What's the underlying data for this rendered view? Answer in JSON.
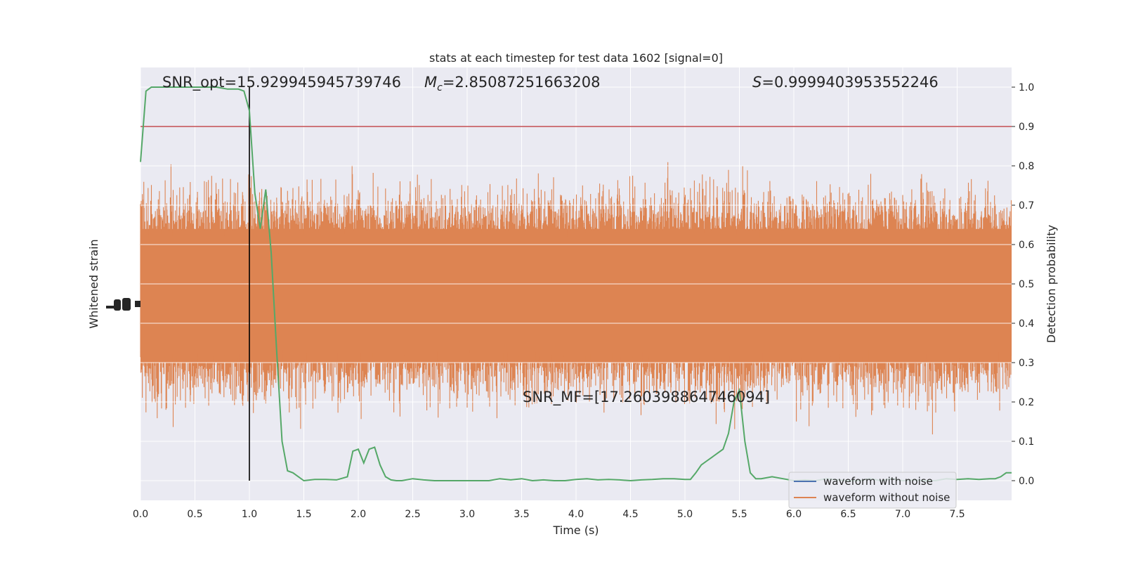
{
  "chart_data": {
    "type": "line",
    "title": "stats at each timestep for test data 1602 [signal=0]",
    "xlabel": "Time (s)",
    "ylabel_left": "Whitened strain",
    "ylabel_right": "Detection probability",
    "xlim": [
      0.0,
      8.0
    ],
    "ylim_right": [
      -0.05,
      1.05
    ],
    "x_ticks": [
      "0.0",
      "0.5",
      "1.0",
      "1.5",
      "2.0",
      "2.5",
      "3.0",
      "3.5",
      "4.0",
      "4.5",
      "5.0",
      "5.5",
      "6.0",
      "6.5",
      "7.0",
      "7.5"
    ],
    "x_tick_values": [
      0.0,
      0.5,
      1.0,
      1.5,
      2.0,
      2.5,
      3.0,
      3.5,
      4.0,
      4.5,
      5.0,
      5.5,
      6.0,
      6.5,
      7.0,
      7.5
    ],
    "y_right_ticks": [
      "0.0",
      "0.1",
      "0.2",
      "0.3",
      "0.4",
      "0.5",
      "0.6",
      "0.7",
      "0.8",
      "0.9",
      "1.0"
    ],
    "y_right_tick_values": [
      0.0,
      0.1,
      0.2,
      0.3,
      0.4,
      0.5,
      0.6,
      0.7,
      0.8,
      0.9,
      1.0
    ],
    "grid": true,
    "annotations": {
      "snr_opt": "SNR_opt=15.929945945739746",
      "mc_symbol": "M",
      "mc_sub": "c",
      "mc_value": "=2.85087251663208",
      "s_symbol": "S",
      "s_value": "=0.9999403953552246",
      "snr_mf": "SNR_MF=[17.260398864746094]"
    },
    "threshold": 0.9,
    "merger_time": 1.0,
    "legend": {
      "placement": "lower-right",
      "entries": [
        {
          "label": "waveform with noise",
          "color": "#4c72b0"
        },
        {
          "label": "waveform without noise",
          "color": "#dd8452"
        }
      ]
    },
    "series": [
      {
        "name": "Detection probability",
        "color": "#55a868",
        "x": [
          0.0,
          0.05,
          0.1,
          0.2,
          0.3,
          0.4,
          0.5,
          0.6,
          0.7,
          0.8,
          0.9,
          0.95,
          1.0,
          1.05,
          1.1,
          1.15,
          1.2,
          1.25,
          1.3,
          1.35,
          1.4,
          1.5,
          1.6,
          1.7,
          1.8,
          1.9,
          1.95,
          2.0,
          2.05,
          2.1,
          2.15,
          2.2,
          2.25,
          2.3,
          2.35,
          2.4,
          2.5,
          2.6,
          2.7,
          2.8,
          2.9,
          3.0,
          3.1,
          3.2,
          3.3,
          3.4,
          3.5,
          3.6,
          3.7,
          3.8,
          3.9,
          4.0,
          4.1,
          4.2,
          4.3,
          4.4,
          4.5,
          4.6,
          4.7,
          4.8,
          4.9,
          5.0,
          5.05,
          5.1,
          5.15,
          5.2,
          5.25,
          5.3,
          5.35,
          5.4,
          5.45,
          5.5,
          5.55,
          5.6,
          5.65,
          5.7,
          5.8,
          5.9,
          6.0,
          6.1,
          6.2,
          6.3,
          6.4,
          6.5,
          6.6,
          6.7,
          6.8,
          6.9,
          7.0,
          7.1,
          7.2,
          7.3,
          7.4,
          7.5,
          7.6,
          7.7,
          7.8,
          7.85,
          7.9,
          7.95,
          8.0
        ],
        "values": [
          0.81,
          0.99,
          1.0,
          1.0,
          1.0,
          1.0,
          1.0,
          1.0,
          1.0,
          0.995,
          0.995,
          0.99,
          0.94,
          0.73,
          0.64,
          0.74,
          0.58,
          0.33,
          0.1,
          0.025,
          0.02,
          0.0,
          0.003,
          0.003,
          0.002,
          0.01,
          0.075,
          0.08,
          0.045,
          0.08,
          0.085,
          0.04,
          0.01,
          0.002,
          0.0,
          0.0,
          0.005,
          0.002,
          0.0,
          0.0,
          0.0,
          0.0,
          0.0,
          0.0,
          0.005,
          0.002,
          0.005,
          0.0,
          0.002,
          0.0,
          0.0,
          0.003,
          0.005,
          0.002,
          0.003,
          0.002,
          0.0,
          0.002,
          0.003,
          0.005,
          0.005,
          0.003,
          0.003,
          0.02,
          0.04,
          0.05,
          0.06,
          0.07,
          0.08,
          0.12,
          0.2,
          0.23,
          0.1,
          0.02,
          0.005,
          0.005,
          0.01,
          0.005,
          0.0,
          0.002,
          0.0,
          0.005,
          0.002,
          0.0,
          0.0,
          0.005,
          0.0,
          0.005,
          0.0,
          0.002,
          0.0,
          0.0,
          0.005,
          0.003,
          0.005,
          0.003,
          0.005,
          0.005,
          0.01,
          0.02,
          0.02
        ]
      }
    ]
  }
}
